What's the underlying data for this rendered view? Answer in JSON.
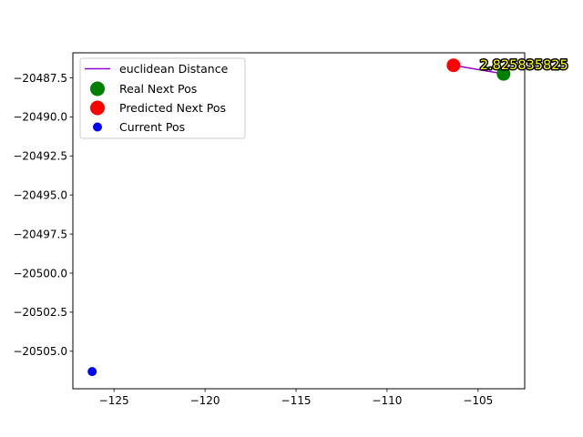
{
  "chart_data": {
    "type": "scatter",
    "title": "",
    "xlabel": "",
    "ylabel": "",
    "xlim": [
      -127.26,
      -102.44
    ],
    "ylim": [
      -20507.4,
      -20485.9
    ],
    "x_ticks": [
      -125,
      -120,
      -115,
      -110,
      -105
    ],
    "y_ticks": [
      -20487.5,
      -20490.0,
      -20492.5,
      -20495.0,
      -20497.5,
      -20500.0,
      -20502.5,
      -20505.0
    ],
    "x_tick_labels": [
      "−125",
      "−120",
      "−115",
      "−110",
      "−105"
    ],
    "y_tick_labels": [
      "−20487.5",
      "−20490.0",
      "−20492.5",
      "−20495.0",
      "−20497.5",
      "−20500.0",
      "−20502.5",
      "−20505.0"
    ],
    "grid": false,
    "legend_position": "top-left",
    "series": [
      {
        "name": "euclidean Distance",
        "kind": "line",
        "color": "#9400d3",
        "points": [
          [
            -106.35,
            -20486.7
          ],
          [
            -103.6,
            -20487.25
          ]
        ]
      },
      {
        "name": "Real Next Pos",
        "kind": "marker",
        "color": "#008000",
        "points": [
          [
            -103.6,
            -20487.25
          ]
        ]
      },
      {
        "name": "Predicted Next Pos",
        "kind": "marker",
        "color": "#ff0000",
        "points": [
          [
            -106.35,
            -20486.7
          ]
        ]
      },
      {
        "name": "Current Pos",
        "kind": "marker",
        "color": "#0000ff",
        "points": [
          [
            -126.2,
            -20506.3
          ]
        ]
      }
    ],
    "annotation": {
      "text": "2.825835825",
      "x": -104.9,
      "y": -20486.95,
      "color": "#ffff00",
      "outline": "#000000"
    }
  }
}
